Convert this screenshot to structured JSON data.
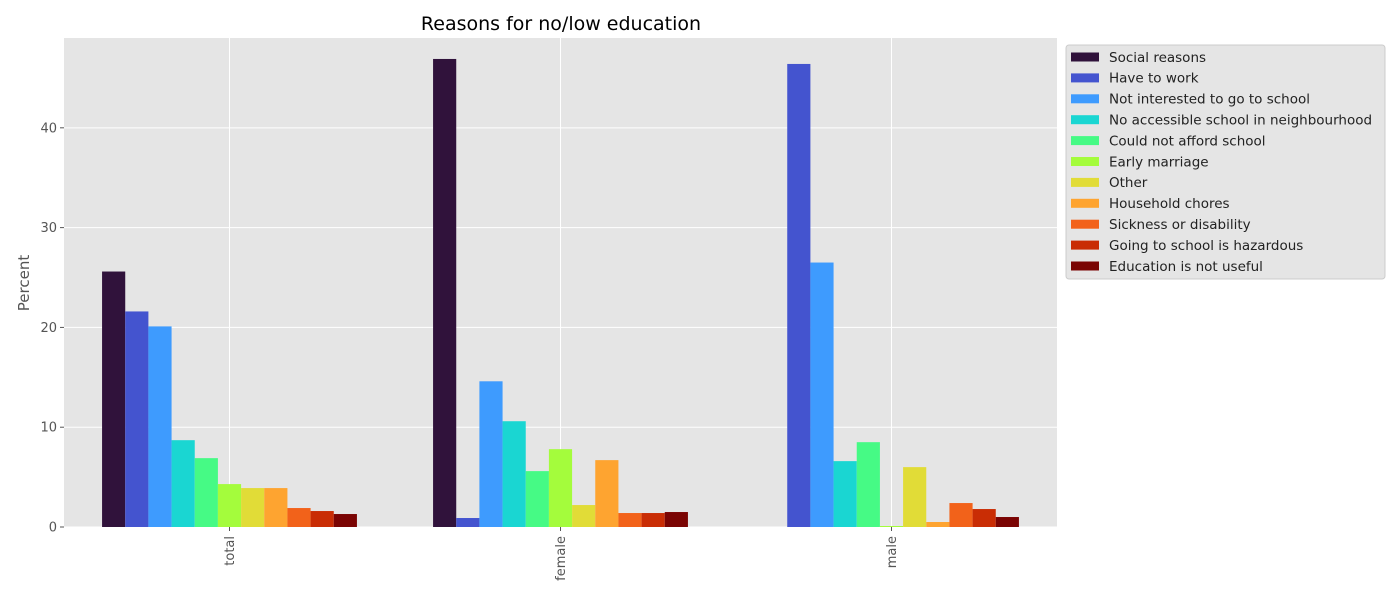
{
  "chart_data": {
    "type": "bar",
    "title": "Reasons for no/low education",
    "xlabel": "",
    "ylabel": "Percent",
    "categories": [
      "total",
      "female",
      "male"
    ],
    "ylim": [
      0,
      49
    ],
    "yticks": [
      0,
      10,
      20,
      30,
      40
    ],
    "grid": true,
    "legend_position": "upper-right-outside",
    "series": [
      {
        "name": "Social reasons",
        "color": "#30123b",
        "values": [
          25.6,
          46.9,
          0.0
        ]
      },
      {
        "name": "Have to work",
        "color": "#4454cf",
        "values": [
          21.6,
          0.9,
          46.4
        ]
      },
      {
        "name": "Not interested to go to school",
        "color": "#3e9bfe",
        "values": [
          20.1,
          14.6,
          26.5
        ]
      },
      {
        "name": "No accessible school in neighbourhood",
        "color": "#1ad6d2",
        "values": [
          8.7,
          10.6,
          6.6
        ]
      },
      {
        "name": "Could not afford school",
        "color": "#46fa85",
        "values": [
          6.9,
          5.6,
          8.5
        ]
      },
      {
        "name": "Early marriage",
        "color": "#a4fc3c",
        "values": [
          4.3,
          7.8,
          0.1
        ]
      },
      {
        "name": "Other",
        "color": "#e1dc37",
        "values": [
          3.9,
          2.2,
          6.0
        ]
      },
      {
        "name": "Household chores",
        "color": "#fea430",
        "values": [
          3.9,
          6.7,
          0.5
        ]
      },
      {
        "name": "Sickness or disability",
        "color": "#f2621a",
        "values": [
          1.9,
          1.4,
          2.4
        ]
      },
      {
        "name": "Going to school is hazardous",
        "color": "#c92d05",
        "values": [
          1.6,
          1.4,
          1.8
        ]
      },
      {
        "name": "Education is not useful",
        "color": "#7a0403",
        "values": [
          1.3,
          1.5,
          1.0
        ]
      }
    ]
  }
}
